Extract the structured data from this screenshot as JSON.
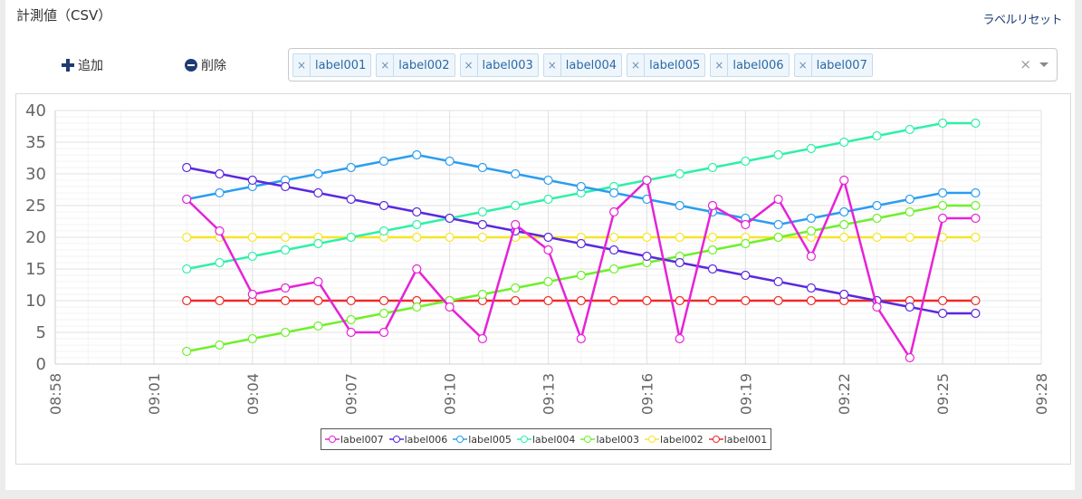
{
  "header": {
    "title": "計測値（CSV）",
    "reset_label": "ラベルリセット"
  },
  "toolbar": {
    "add_label": "追加",
    "delete_label": "削除"
  },
  "selector": {
    "tags": [
      "label001",
      "label002",
      "label003",
      "label004",
      "label005",
      "label006",
      "label007"
    ],
    "remove_glyph": "×",
    "clear_glyph": "×"
  },
  "chart_data": {
    "type": "line",
    "x_ticks": [
      "08:58",
      "09:01",
      "09:04",
      "09:07",
      "09:10",
      "09:13",
      "09:16",
      "09:19",
      "09:22",
      "09:25",
      "09:28"
    ],
    "y_ticks": [
      "0",
      "5",
      "10",
      "15",
      "20",
      "25",
      "30",
      "35",
      "40"
    ],
    "ylim": [
      0,
      40
    ],
    "xlim": [
      "08:58",
      "09:28"
    ],
    "grid": true,
    "legend_position": "bottom",
    "x": [
      "09:02",
      "09:03",
      "09:04",
      "09:05",
      "09:06",
      "09:07",
      "09:08",
      "09:09",
      "09:10",
      "09:11",
      "09:12",
      "09:13",
      "09:14",
      "09:15",
      "09:16",
      "09:17",
      "09:18",
      "09:19",
      "09:20",
      "09:21",
      "09:22",
      "09:23",
      "09:24",
      "09:25",
      "09:26"
    ],
    "series": [
      {
        "name": "label007",
        "color": "#e622d8",
        "values": [
          26,
          21,
          11,
          12,
          13,
          5,
          5,
          15,
          9,
          4,
          22,
          18,
          4,
          24,
          29,
          4,
          25,
          22,
          26,
          17,
          29,
          9,
          1,
          23,
          23
        ]
      },
      {
        "name": "label006",
        "color": "#5a28e0",
        "values": [
          31,
          30,
          29,
          28,
          27,
          26,
          25,
          24,
          23,
          22,
          21,
          20,
          19,
          18,
          17,
          16,
          15,
          14,
          13,
          12,
          11,
          10,
          9,
          8,
          8
        ]
      },
      {
        "name": "label005",
        "color": "#2a9df0",
        "values": [
          26,
          27,
          28,
          29,
          30,
          31,
          32,
          33,
          32,
          31,
          30,
          29,
          28,
          27,
          26,
          25,
          24,
          23,
          22,
          23,
          24,
          25,
          26,
          27,
          27
        ]
      },
      {
        "name": "label004",
        "color": "#2ef0a8",
        "values": [
          15,
          16,
          17,
          18,
          19,
          20,
          21,
          22,
          23,
          24,
          25,
          26,
          27,
          28,
          29,
          30,
          31,
          32,
          33,
          34,
          35,
          36,
          37,
          38,
          38
        ]
      },
      {
        "name": "label003",
        "color": "#6ef02a",
        "values": [
          2,
          3,
          4,
          5,
          6,
          7,
          8,
          9,
          10,
          11,
          12,
          13,
          14,
          15,
          16,
          17,
          18,
          19,
          20,
          21,
          22,
          23,
          24,
          25,
          25
        ]
      },
      {
        "name": "label002",
        "color": "#f5e52a",
        "values": [
          20,
          20,
          20,
          20,
          20,
          20,
          20,
          20,
          20,
          20,
          20,
          20,
          20,
          20,
          20,
          20,
          20,
          20,
          20,
          20,
          20,
          20,
          20,
          20,
          20
        ]
      },
      {
        "name": "label001",
        "color": "#f02a2a",
        "values": [
          10,
          10,
          10,
          10,
          10,
          10,
          10,
          10,
          10,
          10,
          10,
          10,
          10,
          10,
          10,
          10,
          10,
          10,
          10,
          10,
          10,
          10,
          10,
          10,
          10
        ]
      }
    ]
  }
}
